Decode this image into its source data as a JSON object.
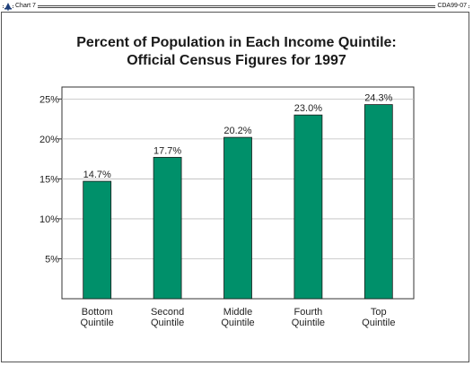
{
  "header": {
    "left_label": "Chart 7",
    "right_label": "CDA99-07",
    "icon": "bell-icon"
  },
  "chart_data": {
    "type": "bar",
    "title": "Percent of Population in Each Income Quintile:",
    "subtitle": "Official Census Figures for 1997",
    "categories": [
      [
        "Bottom",
        "Quintile"
      ],
      [
        "Second",
        "Quintile"
      ],
      [
        "Middle",
        "Quintile"
      ],
      [
        "Fourth",
        "Quintile"
      ],
      [
        "Top",
        "Quintile"
      ]
    ],
    "values": [
      14.7,
      17.7,
      20.2,
      23.0,
      24.3
    ],
    "value_labels": [
      "14.7%",
      "17.7%",
      "20.2%",
      "23.0%",
      "24.3%"
    ],
    "yticks": [
      5,
      10,
      15,
      20,
      25
    ],
    "ytick_labels": [
      "5%",
      "10%",
      "15%",
      "20%",
      "25%"
    ],
    "ylim": [
      0,
      26.5
    ],
    "grid": true,
    "bar_color": "#00906a",
    "xlabel": "",
    "ylabel": ""
  }
}
